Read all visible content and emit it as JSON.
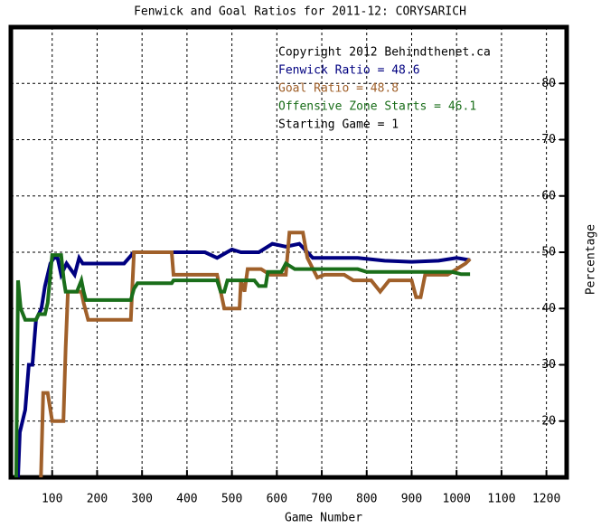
{
  "chart_data": {
    "type": "line",
    "title": "Fenwick and Goal Ratios for 2011-12: CORYSARICH",
    "x_label": "Game Number",
    "y_label": "Percentage",
    "xlim": [
      8,
      1245
    ],
    "ylim": [
      10,
      90
    ],
    "xticks": [
      100,
      200,
      300,
      400,
      500,
      600,
      700,
      800,
      900,
      1000,
      1100,
      1200
    ],
    "yticks": [
      20,
      30,
      40,
      50,
      60,
      70,
      80
    ],
    "grid": true,
    "annotations": [
      {
        "text": "Copyright 2012 Behindthenet.ca",
        "color": "#000000"
      },
      {
        "text": "Fenwick Ratio = 48.6",
        "color": "#000080"
      },
      {
        "text": "Goal Ratio = 48.8",
        "color": "#a0602a"
      },
      {
        "text": "Offensive Zone Starts = 46.1",
        "color": "#1a6e1a"
      },
      {
        "text": "Starting Game = 1",
        "color": "#000000"
      }
    ],
    "series": [
      {
        "color": "#000080",
        "x": [
          24,
          28,
          40,
          48,
          56,
          64,
          76,
          84,
          96,
          104,
          112,
          120,
          132,
          150,
          160,
          168,
          180,
          260,
          282,
          440,
          467,
          500,
          520,
          560,
          590,
          620,
          650,
          680,
          720,
          780,
          840,
          900,
          960,
          1000,
          1030
        ],
        "values": [
          10,
          18,
          22,
          30,
          30,
          38,
          40,
          44,
          48,
          49,
          49,
          46,
          48,
          46,
          49,
          48,
          48,
          48,
          50,
          50,
          49,
          50.5,
          50,
          50,
          51.5,
          51,
          51.5,
          49,
          49,
          49,
          48.5,
          48.3,
          48.5,
          49,
          48.6
        ]
      },
      {
        "color": "#a0602a",
        "x": [
          75,
          80,
          90,
          100,
          125,
          130,
          135,
          165,
          170,
          180,
          275,
          282,
          366,
          370,
          467,
          475,
          483,
          517,
          520,
          528,
          535,
          565,
          585,
          600,
          620,
          628,
          658,
          668,
          690,
          706,
          750,
          770,
          810,
          830,
          850,
          900,
          910,
          920,
          930,
          980,
          1000,
          1020,
          1030
        ],
        "values": [
          10,
          25,
          25,
          20,
          20,
          33,
          43,
          43,
          41,
          38,
          38,
          50,
          50,
          46,
          46,
          43,
          40,
          40,
          45,
          43,
          47,
          47,
          46,
          46,
          46,
          53.5,
          53.5,
          49,
          45.5,
          46,
          46,
          45,
          45,
          43,
          45,
          45,
          42,
          42,
          46,
          46,
          47,
          48,
          48.8
        ]
      },
      {
        "color": "#1a6e1a",
        "x": [
          20,
          24,
          30,
          40,
          64,
          70,
          84,
          90,
          100,
          120,
          126,
          130,
          155,
          165,
          170,
          175,
          275,
          282,
          290,
          366,
          370,
          467,
          475,
          483,
          490,
          550,
          560,
          575,
          580,
          610,
          620,
          640,
          780,
          800,
          990,
          1010,
          1030
        ],
        "values": [
          10,
          45,
          40,
          38,
          38,
          39,
          39,
          41,
          49.5,
          49.5,
          45,
          43,
          43,
          45,
          43,
          41.5,
          41.5,
          43.5,
          44.5,
          44.5,
          45,
          45,
          43,
          43,
          45,
          45,
          44,
          44,
          46.5,
          46.5,
          48,
          47,
          47,
          46.5,
          46.5,
          46.1,
          46.1
        ]
      }
    ]
  }
}
